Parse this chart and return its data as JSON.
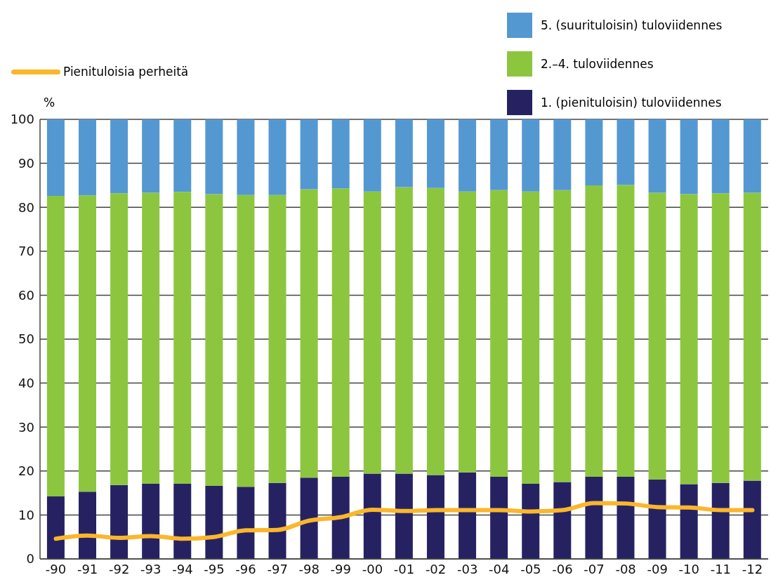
{
  "chart_data": {
    "type": "bar",
    "stacked": true,
    "ylabel": "%",
    "categories": [
      "-90",
      "-91",
      "-92",
      "-93",
      "-94",
      "-95",
      "-96",
      "-97",
      "-98",
      "-99",
      "-00",
      "-01",
      "-02",
      "-03",
      "-04",
      "-05",
      "-06",
      "-07",
      "-08",
      "-09",
      "-10",
      "-11",
      "-12"
    ],
    "series": [
      {
        "name": "1. (pienituloisin) tuloviidennes",
        "color": "#262262",
        "values": [
          14.2,
          15.3,
          16.8,
          17.1,
          17.1,
          16.6,
          16.4,
          17.3,
          18.5,
          18.7,
          19.4,
          19.4,
          19.1,
          19.7,
          18.7,
          17.1,
          17.5,
          18.7,
          18.7,
          18.1,
          17.0,
          17.3,
          17.8
        ]
      },
      {
        "name": "2.–4. tuloviidennes",
        "color": "#8cc63f",
        "values": [
          68.4,
          67.4,
          66.4,
          66.2,
          66.4,
          66.4,
          66.4,
          65.5,
          65.6,
          65.6,
          64.2,
          65.2,
          65.3,
          63.9,
          65.2,
          66.5,
          66.4,
          66.3,
          66.4,
          65.2,
          66.0,
          65.9,
          65.5
        ]
      },
      {
        "name": "5. (suurituloisin) tuloviidennes",
        "color": "#5498d2",
        "values": [
          17.4,
          17.3,
          16.8,
          16.7,
          16.5,
          17.0,
          17.2,
          17.2,
          15.9,
          15.7,
          16.4,
          15.4,
          15.6,
          16.4,
          16.1,
          16.4,
          16.1,
          15.0,
          14.9,
          16.7,
          17.0,
          16.8,
          16.7
        ]
      },
      {
        "name": "Pienituloisia perheitä",
        "type": "line",
        "color": "#fbb62a",
        "values": [
          4.6,
          5.3,
          4.8,
          5.2,
          4.6,
          5.0,
          6.5,
          6.6,
          8.7,
          9.5,
          11.2,
          10.9,
          11.1,
          11.1,
          11.1,
          10.8,
          11.1,
          12.7,
          12.6,
          11.8,
          11.7,
          11.1,
          11.1
        ]
      }
    ],
    "ylim": [
      0,
      100
    ],
    "yticks": [
      0,
      10,
      20,
      30,
      40,
      50,
      60,
      70,
      80,
      90,
      100
    ],
    "grid": "y",
    "legend": "top"
  }
}
